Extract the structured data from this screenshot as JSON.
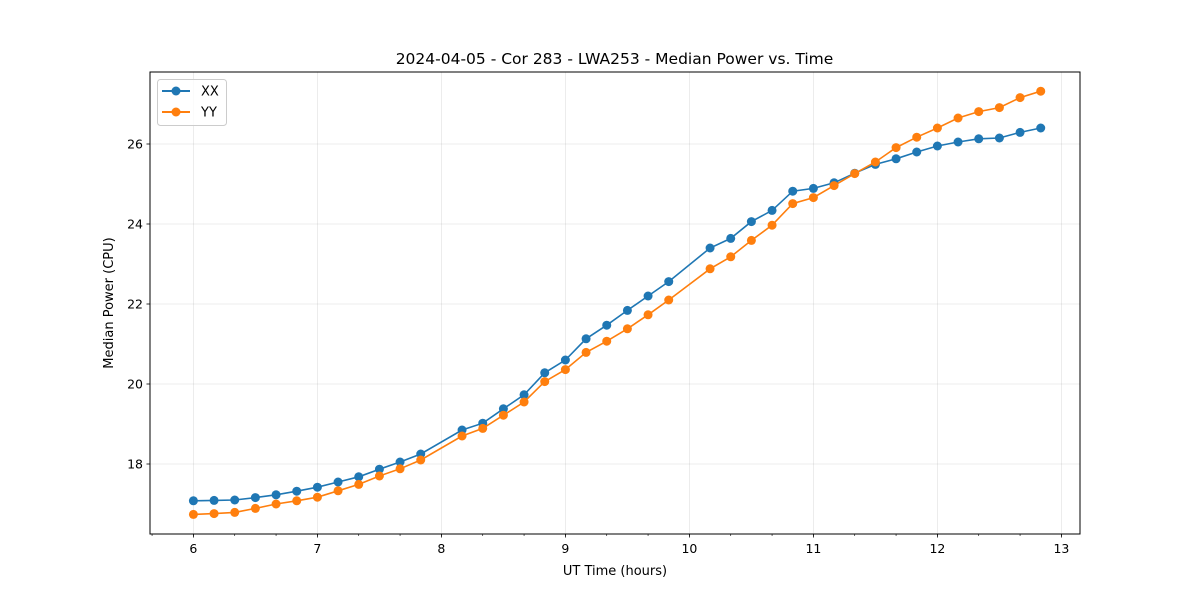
{
  "chart_data": {
    "type": "line",
    "title": "2024-04-05 - Cor 283 - LWA253 - Median Power vs. Time",
    "xlabel": "UT Time (hours)",
    "ylabel": "Median Power (CPU)",
    "xlim": [
      5.65,
      13.15
    ],
    "ylim": [
      16.25,
      27.8
    ],
    "xticks": [
      6,
      7,
      8,
      9,
      10,
      11,
      12,
      13
    ],
    "yticks": [
      18,
      20,
      22,
      24,
      26
    ],
    "x_minor_step": 0.3333333,
    "grid": true,
    "legend_position": "top-left",
    "series": [
      {
        "name": "XX",
        "color": "#1f77b4",
        "points": [
          [
            6.0,
            17.08
          ],
          [
            6.1667,
            17.09
          ],
          [
            6.3333,
            17.1
          ],
          [
            6.5,
            17.16
          ],
          [
            6.6667,
            17.23
          ],
          [
            6.8333,
            17.32
          ],
          [
            7.0,
            17.42
          ],
          [
            7.1667,
            17.55
          ],
          [
            7.3333,
            17.68
          ],
          [
            7.5,
            17.87
          ],
          [
            7.6667,
            18.05
          ],
          [
            7.8333,
            18.25
          ],
          [
            8.1667,
            18.85
          ],
          [
            8.3333,
            19.02
          ],
          [
            8.5,
            19.38
          ],
          [
            8.6667,
            19.73
          ],
          [
            8.8333,
            20.28
          ],
          [
            9.0,
            20.6
          ],
          [
            9.1667,
            21.13
          ],
          [
            9.3333,
            21.47
          ],
          [
            9.5,
            21.84
          ],
          [
            9.6667,
            22.2
          ],
          [
            9.8333,
            22.56
          ],
          [
            10.1667,
            23.4
          ],
          [
            10.3333,
            23.64
          ],
          [
            10.5,
            24.06
          ],
          [
            10.6667,
            24.34
          ],
          [
            10.8333,
            24.82
          ],
          [
            11.0,
            24.89
          ],
          [
            11.1667,
            25.03
          ],
          [
            11.3333,
            25.27
          ],
          [
            11.5,
            25.49
          ],
          [
            11.6667,
            25.63
          ],
          [
            11.8333,
            25.8
          ],
          [
            12.0,
            25.95
          ],
          [
            12.1667,
            26.05
          ],
          [
            12.3333,
            26.13
          ],
          [
            12.5,
            26.15
          ],
          [
            12.6667,
            26.29
          ],
          [
            12.8333,
            26.4
          ]
        ]
      },
      {
        "name": "YY",
        "color": "#ff7f0e",
        "points": [
          [
            6.0,
            16.74
          ],
          [
            6.1667,
            16.76
          ],
          [
            6.3333,
            16.79
          ],
          [
            6.5,
            16.89
          ],
          [
            6.6667,
            17.0
          ],
          [
            6.8333,
            17.08
          ],
          [
            7.0,
            17.17
          ],
          [
            7.1667,
            17.33
          ],
          [
            7.3333,
            17.49
          ],
          [
            7.5,
            17.7
          ],
          [
            7.6667,
            17.88
          ],
          [
            7.8333,
            18.1
          ],
          [
            8.1667,
            18.7
          ],
          [
            8.3333,
            18.89
          ],
          [
            8.5,
            19.22
          ],
          [
            8.6667,
            19.55
          ],
          [
            8.8333,
            20.06
          ],
          [
            9.0,
            20.36
          ],
          [
            9.1667,
            20.79
          ],
          [
            9.3333,
            21.07
          ],
          [
            9.5,
            21.38
          ],
          [
            9.6667,
            21.73
          ],
          [
            9.8333,
            22.1
          ],
          [
            10.1667,
            22.88
          ],
          [
            10.3333,
            23.18
          ],
          [
            10.5,
            23.59
          ],
          [
            10.6667,
            23.97
          ],
          [
            10.8333,
            24.51
          ],
          [
            11.0,
            24.66
          ],
          [
            11.1667,
            24.96
          ],
          [
            11.3333,
            25.26
          ],
          [
            11.5,
            25.55
          ],
          [
            11.6667,
            25.91
          ],
          [
            11.8333,
            26.17
          ],
          [
            12.0,
            26.4
          ],
          [
            12.1667,
            26.65
          ],
          [
            12.3333,
            26.81
          ],
          [
            12.5,
            26.91
          ],
          [
            12.6667,
            27.16
          ],
          [
            12.8333,
            27.32
          ]
        ]
      }
    ]
  }
}
